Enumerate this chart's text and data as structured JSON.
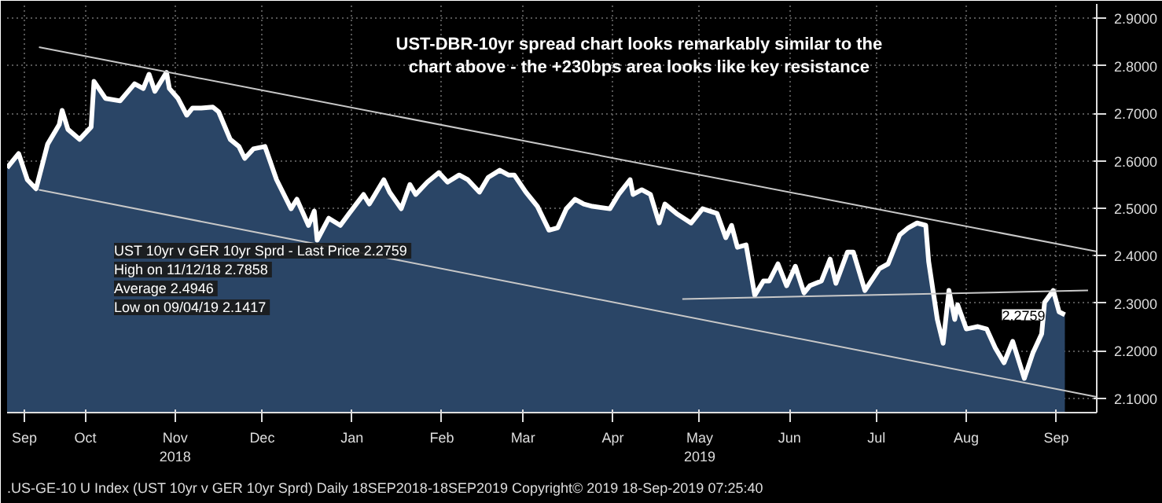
{
  "chart_data": {
    "type": "area",
    "annotations": [
      "UST-DBR-10yr spread chart looks remarkably similar to the chart above - the +230bps area looks like key resistance",
      "UST 10yr v GER 10yr Sprd - Last Price  2.2759",
      "High on 11/12/18  2.7858",
      "Average  2.4946",
      "Low on 09/04/19  2.1417",
      {
        "text": "2.2759",
        "x": "2019-09-18",
        "y": 2.2759
      },
      ".US-GE-10 U Index (UST 10yr v GER 10yr Sprd)  Daily 18SEP2018-18SEP2019",
      "Copyright© 2019",
      "18-Sep-2019 07:25:40"
    ],
    "xlim": [
      "2018-09-18",
      "2019-09-29"
    ],
    "ylim": [
      2.07,
      2.93
    ],
    "xticks": [
      {
        "value": "2018-09-24",
        "label": "Sep"
      },
      {
        "value": "2018-10-15",
        "label": "Oct"
      },
      {
        "value": "2018-11-15",
        "label": "Nov\n2018"
      },
      {
        "value": "2018-12-15",
        "label": "Dec"
      },
      {
        "value": "2019-01-15",
        "label": "Jan"
      },
      {
        "value": "2019-02-15",
        "label": "Feb"
      },
      {
        "value": "2019-03-15",
        "label": "Mar"
      },
      {
        "value": "2019-04-15",
        "label": "Apr"
      },
      {
        "value": "2019-05-15",
        "label": "May\n2019"
      },
      {
        "value": "2019-06-15",
        "label": "Jun"
      },
      {
        "value": "2019-07-15",
        "label": "Jul"
      },
      {
        "value": "2019-08-15",
        "label": "Aug"
      },
      {
        "value": "2019-09-15",
        "label": "Sep"
      }
    ],
    "yticks": [
      {
        "value": 2.1,
        "label": "2.1000"
      },
      {
        "value": 2.2,
        "label": "2.2000"
      },
      {
        "value": 2.3,
        "label": "2.3000"
      },
      {
        "value": 2.4,
        "label": "2.4000"
      },
      {
        "value": 2.5,
        "label": "2.5000"
      },
      {
        "value": 2.6,
        "label": "2.6000"
      },
      {
        "value": 2.7,
        "label": "2.7000"
      },
      {
        "value": 2.8,
        "label": "2.8000"
      },
      {
        "value": 2.9,
        "label": "2.9000"
      }
    ],
    "grid": true,
    "series": [
      {
        "color": "#ffffff",
        "x": [
          "2018-09-18",
          "2018-09-22",
          "2018-09-25",
          "2018-09-28",
          "2018-10-02",
          "2018-10-06",
          "2018-10-07",
          "2018-10-09",
          "2018-10-13",
          "2018-10-17",
          "2018-10-18",
          "2018-10-22",
          "2018-10-27",
          "2018-11-01",
          "2018-11-04",
          "2018-11-06",
          "2018-11-08",
          "2018-11-12",
          "2018-11-13",
          "2018-11-16",
          "2018-11-19",
          "2018-11-21",
          "2018-11-24",
          "2018-11-28",
          "2018-11-30",
          "2018-12-04",
          "2018-12-07",
          "2018-12-09",
          "2018-12-12",
          "2018-12-16",
          "2018-12-20",
          "2018-12-25",
          "2018-12-27",
          "2018-12-31",
          "2019-01-02",
          "2019-01-03",
          "2019-01-07",
          "2019-01-11",
          "2019-01-14",
          "2019-01-19",
          "2019-01-21",
          "2019-01-26",
          "2019-01-28",
          "2019-02-01",
          "2019-02-04",
          "2019-02-06",
          "2019-02-10",
          "2019-02-14",
          "2019-02-17",
          "2019-02-21",
          "2019-02-24",
          "2019-02-28",
          "2019-03-03",
          "2019-03-07",
          "2019-03-10",
          "2019-03-12",
          "2019-03-16",
          "2019-03-20",
          "2019-03-24",
          "2019-03-27",
          "2019-03-30",
          "2019-04-02",
          "2019-04-05",
          "2019-04-08",
          "2019-04-14",
          "2019-04-17",
          "2019-04-21",
          "2019-04-22",
          "2019-04-25",
          "2019-04-28",
          "2019-05-01",
          "2019-05-03",
          "2019-05-07",
          "2019-05-12",
          "2019-05-16",
          "2019-05-21",
          "2019-05-24",
          "2019-05-26",
          "2019-05-28",
          "2019-05-31",
          "2019-06-03",
          "2019-06-06",
          "2019-06-08",
          "2019-06-11",
          "2019-06-14",
          "2019-06-17",
          "2019-06-20",
          "2019-06-22",
          "2019-06-26",
          "2019-06-29",
          "2019-07-01",
          "2019-07-05",
          "2019-07-07",
          "2019-07-11",
          "2019-07-16",
          "2019-07-19",
          "2019-07-23",
          "2019-07-26",
          "2019-07-29",
          "2019-08-01",
          "2019-08-02",
          "2019-08-05",
          "2019-08-07",
          "2019-08-09",
          "2019-08-11",
          "2019-08-12",
          "2019-08-15",
          "2019-08-19",
          "2019-08-22",
          "2019-08-25",
          "2019-08-28",
          "2019-08-31",
          "2019-09-04",
          "2019-09-07",
          "2019-09-10",
          "2019-09-11",
          "2019-09-14",
          "2019-09-16",
          "2019-09-18"
        ],
        "values": [
          2.585,
          2.615,
          2.56,
          2.541,
          2.635,
          2.676,
          2.706,
          2.666,
          2.645,
          2.671,
          2.767,
          2.731,
          2.726,
          2.762,
          2.752,
          2.782,
          2.746,
          2.786,
          2.752,
          2.731,
          2.696,
          2.711,
          2.711,
          2.713,
          2.703,
          2.645,
          2.63,
          2.605,
          2.625,
          2.63,
          2.56,
          2.499,
          2.519,
          2.464,
          2.494,
          2.433,
          2.479,
          2.464,
          2.489,
          2.529,
          2.509,
          2.56,
          2.534,
          2.499,
          2.55,
          2.529,
          2.555,
          2.575,
          2.555,
          2.57,
          2.56,
          2.534,
          2.565,
          2.58,
          2.57,
          2.57,
          2.534,
          2.504,
          2.454,
          2.459,
          2.499,
          2.519,
          2.509,
          2.504,
          2.499,
          2.529,
          2.56,
          2.529,
          2.539,
          2.529,
          2.469,
          2.509,
          2.489,
          2.469,
          2.499,
          2.489,
          2.438,
          2.464,
          2.418,
          2.423,
          2.317,
          2.347,
          2.347,
          2.383,
          2.337,
          2.378,
          2.322,
          2.337,
          2.347,
          2.393,
          2.342,
          2.408,
          2.408,
          2.327,
          2.373,
          2.383,
          2.444,
          2.459,
          2.469,
          2.464,
          2.388,
          2.266,
          2.216,
          2.327,
          2.266,
          2.297,
          2.246,
          2.251,
          2.246,
          2.206,
          2.175,
          2.22,
          2.142,
          2.196,
          2.236,
          2.302,
          2.327,
          2.282,
          2.276
        ]
      },
      {
        "type": "line",
        "color": "#c8c8c8",
        "x": [
          "2018-09-29",
          "2019-09-29"
        ],
        "values": [
          2.839,
          2.409
        ]
      },
      {
        "type": "line",
        "color": "#c8c8c8",
        "x": [
          "2018-09-29",
          "2019-09-29"
        ],
        "values": [
          2.539,
          2.103
        ]
      },
      {
        "type": "line",
        "color": "#c8c8c8",
        "x": [
          "2019-05-09",
          "2019-09-26"
        ],
        "values": [
          2.309,
          2.327
        ]
      }
    ]
  }
}
